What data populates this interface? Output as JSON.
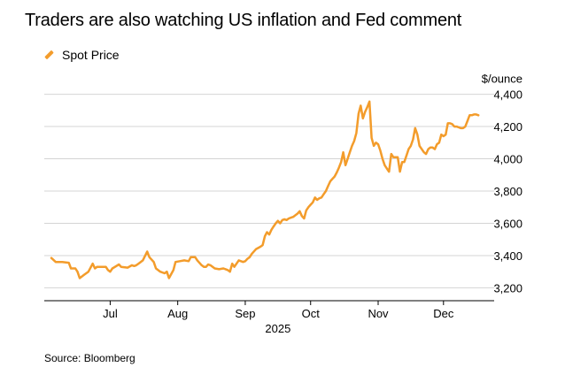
{
  "chart_data": {
    "type": "line",
    "title": "Traders are also watching US inflation and Fed comment",
    "legend": [
      "Spot Price"
    ],
    "ylabel_unit": "$/ounce",
    "xlabel": "2025",
    "x_month_labels": [
      "Jul",
      "Aug",
      "Sep",
      "Oct",
      "Nov",
      "Dec"
    ],
    "y_ticks": [
      3200,
      3400,
      3600,
      3800,
      4000,
      4200,
      4400
    ],
    "y_tick_labels": [
      "3,200",
      "3,400",
      "3,600",
      "3,800",
      "4,000",
      "4,200",
      "4,400"
    ],
    "ylim": [
      3120,
      4480
    ],
    "x_range_days": [
      0,
      200
    ],
    "series": [
      {
        "name": "Spot Price",
        "color": "#f39c2b",
        "points": [
          [
            0,
            3385
          ],
          [
            2,
            3360
          ],
          [
            5,
            3360
          ],
          [
            8,
            3355
          ],
          [
            9,
            3320
          ],
          [
            11,
            3320
          ],
          [
            12,
            3300
          ],
          [
            13,
            3260
          ],
          [
            15,
            3280
          ],
          [
            17,
            3300
          ],
          [
            19,
            3350
          ],
          [
            20,
            3320
          ],
          [
            21,
            3330
          ],
          [
            23,
            3330
          ],
          [
            25,
            3330
          ],
          [
            26,
            3310
          ],
          [
            27,
            3300
          ],
          [
            28,
            3320
          ],
          [
            31,
            3345
          ],
          [
            32,
            3330
          ],
          [
            35,
            3325
          ],
          [
            37,
            3340
          ],
          [
            38,
            3335
          ],
          [
            39,
            3340
          ],
          [
            40,
            3350
          ],
          [
            41,
            3360
          ],
          [
            42,
            3370
          ],
          [
            44,
            3425
          ],
          [
            45,
            3390
          ],
          [
            47,
            3360
          ],
          [
            48,
            3320
          ],
          [
            50,
            3300
          ],
          [
            52,
            3290
          ],
          [
            53,
            3300
          ],
          [
            54,
            3260
          ],
          [
            56,
            3310
          ],
          [
            57,
            3360
          ],
          [
            59,
            3365
          ],
          [
            61,
            3370
          ],
          [
            63,
            3365
          ],
          [
            64,
            3390
          ],
          [
            66,
            3390
          ],
          [
            67,
            3370
          ],
          [
            69,
            3340
          ],
          [
            70,
            3330
          ],
          [
            71,
            3330
          ],
          [
            72,
            3345
          ],
          [
            73,
            3340
          ],
          [
            75,
            3320
          ],
          [
            77,
            3315
          ],
          [
            79,
            3320
          ],
          [
            81,
            3310
          ],
          [
            82,
            3300
          ],
          [
            83,
            3350
          ],
          [
            84,
            3330
          ],
          [
            86,
            3370
          ],
          [
            88,
            3360
          ],
          [
            89,
            3365
          ],
          [
            90,
            3380
          ],
          [
            91,
            3390
          ],
          [
            92,
            3410
          ],
          [
            94,
            3440
          ],
          [
            96,
            3455
          ],
          [
            97,
            3465
          ],
          [
            98,
            3520
          ],
          [
            99,
            3545
          ],
          [
            100,
            3530
          ],
          [
            101,
            3560
          ],
          [
            102,
            3580
          ],
          [
            103,
            3600
          ],
          [
            104,
            3615
          ],
          [
            105,
            3600
          ],
          [
            106,
            3620
          ],
          [
            107,
            3625
          ],
          [
            108,
            3620
          ],
          [
            109,
            3630
          ],
          [
            110,
            3635
          ],
          [
            111,
            3640
          ],
          [
            112,
            3650
          ],
          [
            113,
            3660
          ],
          [
            114,
            3675
          ],
          [
            115,
            3645
          ],
          [
            116,
            3630
          ],
          [
            117,
            3680
          ],
          [
            118,
            3700
          ],
          [
            119,
            3715
          ],
          [
            120,
            3730
          ],
          [
            121,
            3760
          ],
          [
            122,
            3745
          ],
          [
            123,
            3755
          ],
          [
            124,
            3760
          ],
          [
            125,
            3780
          ],
          [
            126,
            3800
          ],
          [
            127,
            3830
          ],
          [
            128,
            3860
          ],
          [
            129,
            3875
          ],
          [
            130,
            3890
          ],
          [
            131,
            3915
          ],
          [
            132,
            3945
          ],
          [
            133,
            3980
          ],
          [
            134,
            4040
          ],
          [
            135,
            3960
          ],
          [
            136,
            4000
          ],
          [
            137,
            4040
          ],
          [
            138,
            4080
          ],
          [
            139,
            4110
          ],
          [
            140,
            4160
          ],
          [
            141,
            4280
          ],
          [
            142,
            4330
          ],
          [
            143,
            4250
          ],
          [
            144,
            4290
          ],
          [
            145,
            4320
          ],
          [
            146,
            4355
          ],
          [
            147,
            4130
          ],
          [
            148,
            4080
          ],
          [
            149,
            4100
          ],
          [
            150,
            4090
          ],
          [
            151,
            4050
          ],
          [
            152,
            4000
          ],
          [
            153,
            3960
          ],
          [
            154,
            3940
          ],
          [
            155,
            3920
          ],
          [
            156,
            4030
          ],
          [
            157,
            4010
          ],
          [
            158,
            4010
          ],
          [
            159,
            4010
          ],
          [
            160,
            3920
          ],
          [
            161,
            3980
          ],
          [
            162,
            3980
          ],
          [
            163,
            4020
          ],
          [
            164,
            4060
          ],
          [
            165,
            4080
          ],
          [
            166,
            4120
          ],
          [
            167,
            4190
          ],
          [
            168,
            4150
          ],
          [
            169,
            4080
          ],
          [
            170,
            4060
          ],
          [
            171,
            4040
          ],
          [
            172,
            4030
          ],
          [
            173,
            4060
          ],
          [
            174,
            4070
          ],
          [
            175,
            4070
          ],
          [
            176,
            4060
          ],
          [
            177,
            4090
          ],
          [
            178,
            4100
          ],
          [
            179,
            4150
          ],
          [
            180,
            4140
          ],
          [
            181,
            4150
          ],
          [
            182,
            4220
          ],
          [
            183,
            4220
          ],
          [
            184,
            4215
          ],
          [
            185,
            4200
          ],
          [
            186,
            4200
          ],
          [
            187,
            4195
          ],
          [
            188,
            4190
          ],
          [
            189,
            4190
          ],
          [
            190,
            4200
          ],
          [
            191,
            4235
          ],
          [
            192,
            4270
          ],
          [
            193,
            4270
          ],
          [
            194,
            4275
          ],
          [
            195,
            4275
          ],
          [
            196,
            4270
          ]
        ]
      }
    ]
  },
  "footer": {
    "source": "Source: Bloomberg"
  }
}
